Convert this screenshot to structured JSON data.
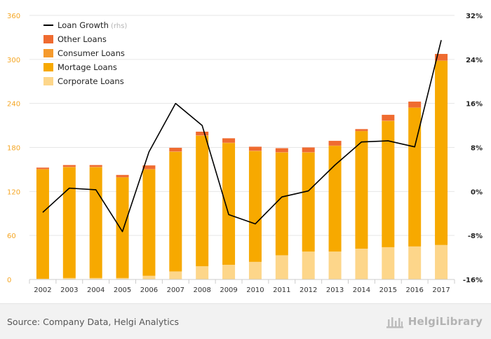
{
  "chart_data": {
    "type": "bar",
    "stacked": true,
    "categories": [
      "2002",
      "2003",
      "2004",
      "2005",
      "2006",
      "2007",
      "2008",
      "2009",
      "2010",
      "2011",
      "2012",
      "2013",
      "2014",
      "2015",
      "2016",
      "2017"
    ],
    "series": [
      {
        "name": "Corporate Loans",
        "color": "#fdd68a",
        "values": [
          1,
          2,
          2,
          2,
          5,
          11,
          18,
          20,
          24,
          33,
          38,
          38,
          42,
          44,
          45,
          47
        ]
      },
      {
        "name": "Mortage Loans",
        "color": "#f7a900",
        "values": [
          149,
          151,
          151,
          137,
          145,
          163,
          178,
          166,
          151,
          140,
          135,
          144,
          160,
          172,
          189,
          251
        ]
      },
      {
        "name": "Consumer Loans",
        "color": "#f59a2c",
        "values": [
          0.5,
          0.5,
          0.5,
          0.5,
          0.5,
          0.5,
          0.5,
          0.5,
          0.5,
          0.5,
          0.5,
          0.5,
          0.5,
          0.5,
          0.5,
          0.5
        ]
      },
      {
        "name": "Other Loans",
        "color": "#ef6b30",
        "values": [
          2,
          2.5,
          2.5,
          3,
          5,
          5,
          5,
          6,
          5.5,
          5.5,
          6.5,
          6.5,
          2.5,
          8,
          8,
          9
        ]
      }
    ],
    "line_series": {
      "name": "Loan Growth (rhs)",
      "color": "#000000",
      "axis": "right",
      "values": [
        -3.8,
        0.6,
        0.3,
        -7.3,
        7.2,
        16.0,
        12.0,
        -4.2,
        -5.9,
        -1.0,
        0.1,
        4.8,
        9.0,
        9.2,
        8.1,
        27.5
      ]
    },
    "y_left": {
      "min": 0,
      "max": 360,
      "ticks": [
        0,
        60,
        120,
        180,
        240,
        300,
        360
      ],
      "tick_labels": [
        "0",
        "60",
        "120",
        "180",
        "240",
        "300",
        "360"
      ]
    },
    "y_right": {
      "min": -16,
      "max": 32,
      "ticks": [
        -16,
        -8,
        0,
        8,
        16,
        24,
        32
      ],
      "tick_labels": [
        "-16%",
        "-8%",
        "0%",
        "8%",
        "16%",
        "24%",
        "32%"
      ]
    },
    "legend": {
      "position": "top-left",
      "items": [
        {
          "label": "Loan Growth",
          "suffix": " (rhs)",
          "type": "line",
          "color": "#000000"
        },
        {
          "label": "Other Loans",
          "type": "box",
          "color": "#ef6b30"
        },
        {
          "label": "Consumer Loans",
          "type": "box",
          "color": "#f59a2c"
        },
        {
          "label": "Mortage Loans",
          "type": "box",
          "color": "#f7a900"
        },
        {
          "label": "Corporate Loans",
          "type": "box",
          "color": "#fdd68a"
        }
      ]
    },
    "grid": true
  },
  "footer": {
    "source": "Source: Company Data, Helgi Analytics",
    "logo_text": "HelgiLibrary"
  }
}
